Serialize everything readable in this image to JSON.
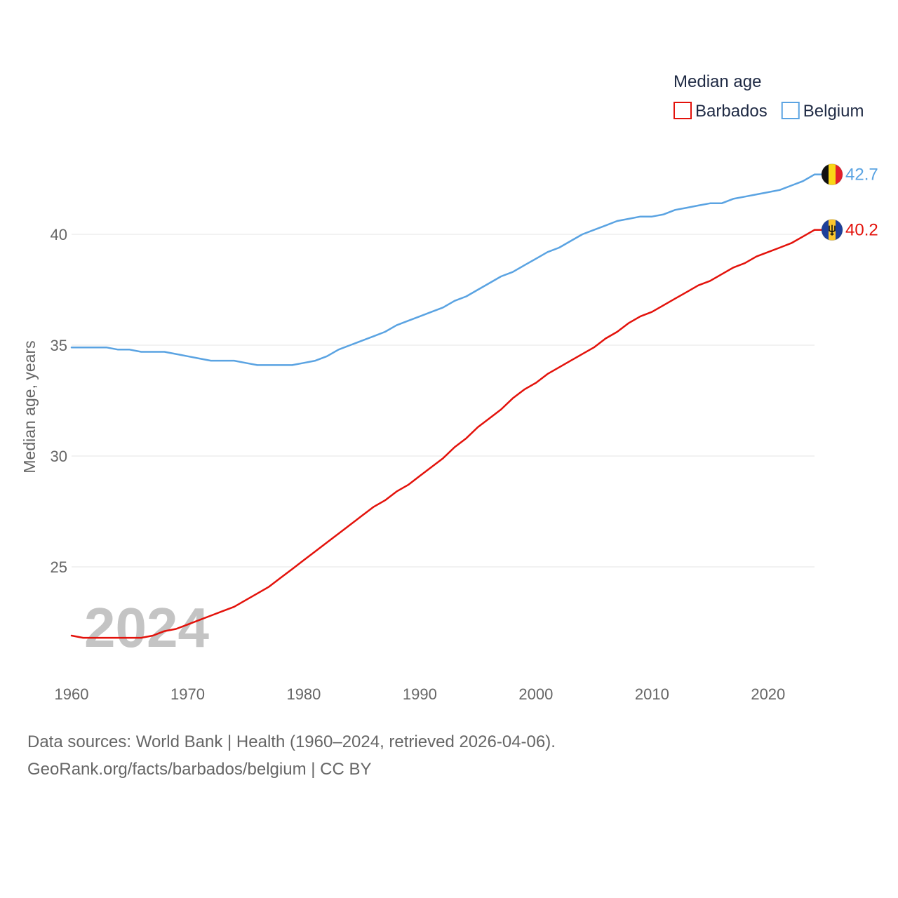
{
  "chart_data": {
    "type": "line",
    "title": "Median age",
    "xlabel": "",
    "ylabel": "Median age, years",
    "xlim": [
      1960,
      2024
    ],
    "ylim": [
      21,
      43.5
    ],
    "x_ticks": [
      1960,
      1970,
      1980,
      1990,
      2000,
      2010,
      2020
    ],
    "y_ticks": [
      25,
      30,
      35,
      40
    ],
    "grid": true,
    "legend_position": "top-right",
    "current_year": "2024",
    "x": [
      1960,
      1961,
      1962,
      1963,
      1964,
      1965,
      1966,
      1967,
      1968,
      1969,
      1970,
      1971,
      1972,
      1973,
      1974,
      1975,
      1976,
      1977,
      1978,
      1979,
      1980,
      1981,
      1982,
      1983,
      1984,
      1985,
      1986,
      1987,
      1988,
      1989,
      1990,
      1991,
      1992,
      1993,
      1994,
      1995,
      1996,
      1997,
      1998,
      1999,
      2000,
      2001,
      2002,
      2003,
      2004,
      2005,
      2006,
      2007,
      2008,
      2009,
      2010,
      2011,
      2012,
      2013,
      2014,
      2015,
      2016,
      2017,
      2018,
      2019,
      2020,
      2021,
      2022,
      2023,
      2024
    ],
    "series": [
      {
        "name": "Barbados",
        "color": "#e3120b",
        "end_label": "40.2",
        "flag": "barbados",
        "values": [
          21.9,
          21.8,
          21.8,
          21.8,
          21.8,
          21.8,
          21.8,
          21.9,
          22.1,
          22.2,
          22.4,
          22.6,
          22.8,
          23.0,
          23.2,
          23.5,
          23.8,
          24.1,
          24.5,
          24.9,
          25.3,
          25.7,
          26.1,
          26.5,
          26.9,
          27.3,
          27.7,
          28.0,
          28.4,
          28.7,
          29.1,
          29.5,
          29.9,
          30.4,
          30.8,
          31.3,
          31.7,
          32.1,
          32.6,
          33.0,
          33.3,
          33.7,
          34.0,
          34.3,
          34.6,
          34.9,
          35.3,
          35.6,
          36.0,
          36.3,
          36.5,
          36.8,
          37.1,
          37.4,
          37.7,
          37.9,
          38.2,
          38.5,
          38.7,
          39.0,
          39.2,
          39.4,
          39.6,
          39.9,
          40.2
        ]
      },
      {
        "name": "Belgium",
        "color": "#5aa3e2",
        "end_label": "42.7",
        "flag": "belgium",
        "values": [
          34.9,
          34.9,
          34.9,
          34.9,
          34.8,
          34.8,
          34.7,
          34.7,
          34.7,
          34.6,
          34.5,
          34.4,
          34.3,
          34.3,
          34.3,
          34.2,
          34.1,
          34.1,
          34.1,
          34.1,
          34.2,
          34.3,
          34.5,
          34.8,
          35.0,
          35.2,
          35.4,
          35.6,
          35.9,
          36.1,
          36.3,
          36.5,
          36.7,
          37.0,
          37.2,
          37.5,
          37.8,
          38.1,
          38.3,
          38.6,
          38.9,
          39.2,
          39.4,
          39.7,
          40.0,
          40.2,
          40.4,
          40.6,
          40.7,
          40.8,
          40.8,
          40.9,
          41.1,
          41.2,
          41.3,
          41.4,
          41.4,
          41.6,
          41.7,
          41.8,
          41.9,
          42.0,
          42.2,
          42.4,
          42.7
        ]
      }
    ]
  },
  "footer": {
    "sources": "Data sources: World Bank | Health (1960–2024, retrieved 2026-04-06).",
    "credit": "GeoRank.org/facts/barbados/belgium | CC BY"
  }
}
